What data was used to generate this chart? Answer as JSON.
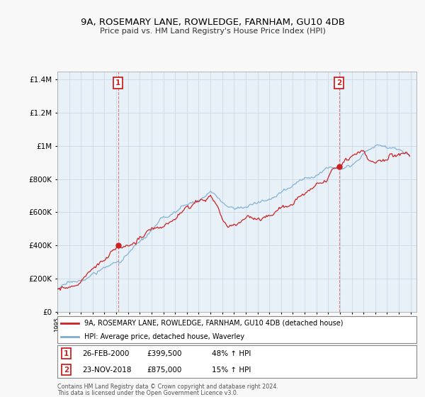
{
  "title": "9A, ROSEMARY LANE, ROWLEDGE, FARNHAM, GU10 4DB",
  "subtitle": "Price paid vs. HM Land Registry's House Price Index (HPI)",
  "hpi_color": "#7aadcf",
  "price_color": "#cc2222",
  "vline_color": "#cc2222",
  "ylim": [
    0,
    1450000
  ],
  "yticks": [
    0,
    200000,
    400000,
    600000,
    800000,
    1000000,
    1200000,
    1400000
  ],
  "xlim_start": 1995.0,
  "xlim_end": 2025.5,
  "sale1_year_idx": 62,
  "sale1_price": 399500,
  "sale2_year_idx": 287,
  "sale2_price": 875000,
  "legend_entry1": "9A, ROSEMARY LANE, ROWLEDGE, FARNHAM, GU10 4DB (detached house)",
  "legend_entry2": "HPI: Average price, detached house, Waverley",
  "ann1_num": "1",
  "ann1_date": "26-FEB-2000",
  "ann1_price": "£399,500",
  "ann1_hpi": "48% ↑ HPI",
  "ann2_num": "2",
  "ann2_date": "23-NOV-2018",
  "ann2_price": "£875,000",
  "ann2_hpi": "15% ↑ HPI",
  "footer1": "Contains HM Land Registry data © Crown copyright and database right 2024.",
  "footer2": "This data is licensed under the Open Government Licence v3.0.",
  "plot_bg_color": "#e8f0f8",
  "fig_bg_color": "#f0f0f0",
  "grid_color": "#c8d8e8"
}
